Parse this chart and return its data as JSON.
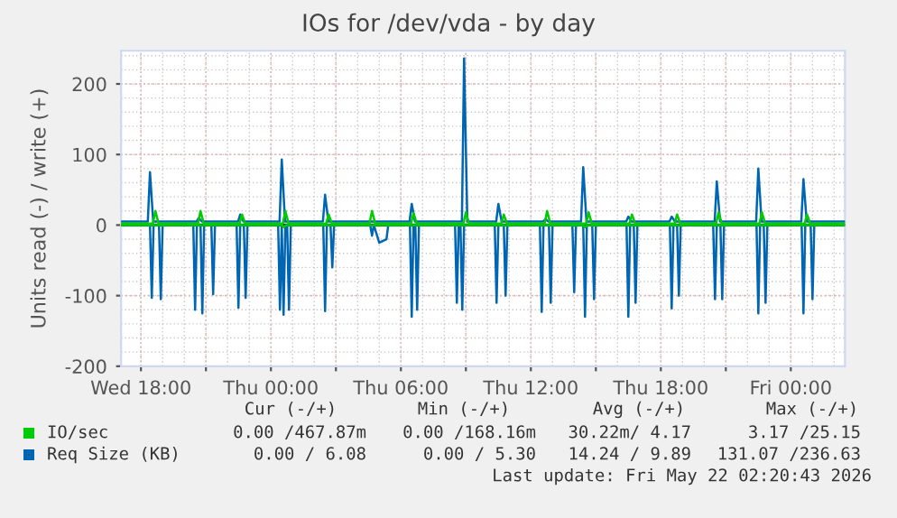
{
  "chart_data": {
    "type": "line",
    "title": "IOs for /dev/vda - by day",
    "ylabel": "Units read (-) / write (+)",
    "xlim": [
      "2026-05-20T17:05",
      "2026-05-22T02:30"
    ],
    "ylim": [
      -200,
      247
    ],
    "xticks": [
      {
        "value": "2026-05-20T18:00",
        "label": "Wed 18:00"
      },
      {
        "value": "2026-05-20T21:00",
        "label": null
      },
      {
        "value": "2026-05-21T00:00",
        "label": "Thu 00:00"
      },
      {
        "value": "2026-05-21T03:00",
        "label": null
      },
      {
        "value": "2026-05-21T06:00",
        "label": "Thu 06:00"
      },
      {
        "value": "2026-05-21T09:00",
        "label": null
      },
      {
        "value": "2026-05-21T12:00",
        "label": "Thu 12:00"
      },
      {
        "value": "2026-05-21T15:00",
        "label": null
      },
      {
        "value": "2026-05-21T18:00",
        "label": "Thu 18:00"
      },
      {
        "value": "2026-05-21T21:00",
        "label": null
      },
      {
        "value": "2026-05-22T00:00",
        "label": "Fri 00:00"
      }
    ],
    "yticks": [
      -200,
      -100,
      0,
      100,
      200
    ],
    "grid": true,
    "legend": "bottom left",
    "ref_lines": [
      {
        "axis": "y",
        "value": 0,
        "color": "#000000"
      }
    ],
    "series": [
      {
        "color": "#00cc00",
        "x": [
          "2026-05-20T17:05",
          "2026-05-21T00:30",
          "2026-05-21T00:35",
          "2026-05-21T00:42",
          "2026-05-21T14:24",
          "2026-05-21T14:30",
          "2026-05-21T14:36",
          "2026-05-22T02:30"
        ],
        "values": [
          0,
          0,
          -3,
          0,
          0,
          -3,
          0,
          0
        ]
      },
      {
        "name": "IO/sec",
        "color": "#00cc00",
        "x": [
          "2026-05-20T17:05",
          "2026-05-20T18:33",
          "2026-05-20T18:40",
          "2026-05-20T18:49",
          "2026-05-20T20:38",
          "2026-05-20T20:45",
          "2026-05-20T20:54",
          "2026-05-20T22:33",
          "2026-05-20T22:40",
          "2026-05-20T22:49",
          "2026-05-21T00:33",
          "2026-05-21T00:40",
          "2026-05-21T00:49",
          "2026-05-21T02:33",
          "2026-05-21T02:40",
          "2026-05-21T02:49",
          "2026-05-21T04:33",
          "2026-05-21T04:40",
          "2026-05-21T04:49",
          "2026-05-21T06:28",
          "2026-05-21T06:35",
          "2026-05-21T06:44",
          "2026-05-21T08:53",
          "2026-05-21T09:00",
          "2026-05-21T09:09",
          "2026-05-21T10:38",
          "2026-05-21T10:45",
          "2026-05-21T10:54",
          "2026-05-21T12:38",
          "2026-05-21T12:45",
          "2026-05-21T12:54",
          "2026-05-21T14:33",
          "2026-05-21T14:40",
          "2026-05-21T14:49",
          "2026-05-21T16:33",
          "2026-05-21T16:40",
          "2026-05-21T16:49",
          "2026-05-21T18:38",
          "2026-05-21T18:45",
          "2026-05-21T18:54",
          "2026-05-21T20:33",
          "2026-05-21T20:40",
          "2026-05-21T20:49",
          "2026-05-21T22:33",
          "2026-05-21T22:40",
          "2026-05-21T22:49",
          "2026-05-22T00:38",
          "2026-05-22T00:45",
          "2026-05-22T00:54",
          "2026-05-22T02:30"
        ],
        "values": [
          2,
          2,
          20,
          2,
          2,
          20,
          2,
          2,
          15,
          2,
          2,
          20,
          2,
          2,
          15,
          2,
          2,
          20,
          2,
          2,
          17,
          2,
          2,
          18,
          2,
          2,
          15,
          2,
          2,
          20,
          2,
          2,
          18,
          2,
          2,
          15,
          2,
          2,
          15,
          2,
          2,
          18,
          2,
          2,
          18,
          2,
          2,
          15,
          2,
          2
        ]
      },
      {
        "color": "#0066b3",
        "x": [
          "2026-05-20T17:05",
          "2026-05-20T18:25",
          "2026-05-20T18:30",
          "2026-05-20T18:35",
          "2026-05-20T18:50",
          "2026-05-20T18:55",
          "2026-05-20T19:00",
          "2026-05-20T20:25",
          "2026-05-20T20:30",
          "2026-05-20T20:35",
          "2026-05-20T20:45",
          "2026-05-20T20:50",
          "2026-05-20T20:55",
          "2026-05-20T21:15",
          "2026-05-20T21:20",
          "2026-05-20T21:25",
          "2026-05-20T22:25",
          "2026-05-20T22:30",
          "2026-05-20T22:35",
          "2026-05-20T22:45",
          "2026-05-20T22:50",
          "2026-05-20T22:55",
          "2026-05-21T00:20",
          "2026-05-21T00:25",
          "2026-05-21T00:30",
          "2026-05-21T00:35",
          "2026-05-21T00:40",
          "2026-05-21T00:45",
          "2026-05-21T00:50",
          "2026-05-21T00:55",
          "2026-05-21T02:25",
          "2026-05-21T02:30",
          "2026-05-21T02:35",
          "2026-05-21T02:45",
          "2026-05-21T02:50",
          "2026-05-21T02:55",
          "2026-05-21T04:35",
          "2026-05-21T04:40",
          "2026-05-21T04:45",
          "2026-05-21T05:00",
          "2026-05-21T05:20",
          "2026-05-21T05:25",
          "2026-05-21T06:25",
          "2026-05-21T06:30",
          "2026-05-21T06:35",
          "2026-05-21T06:40",
          "2026-05-21T06:45",
          "2026-05-21T06:50",
          "2026-05-21T08:30",
          "2026-05-21T08:35",
          "2026-05-21T08:40",
          "2026-05-21T08:45",
          "2026-05-21T08:50",
          "2026-05-21T08:55",
          "2026-05-21T10:20",
          "2026-05-21T10:25",
          "2026-05-21T10:30",
          "2026-05-21T10:45",
          "2026-05-21T10:50",
          "2026-05-21T10:55",
          "2026-05-21T12:25",
          "2026-05-21T12:30",
          "2026-05-21T12:35",
          "2026-05-21T12:50",
          "2026-05-21T12:55",
          "2026-05-21T13:00",
          "2026-05-21T13:55",
          "2026-05-21T14:00",
          "2026-05-21T14:05",
          "2026-05-21T14:25",
          "2026-05-21T14:30",
          "2026-05-21T14:35",
          "2026-05-21T14:50",
          "2026-05-21T14:55",
          "2026-05-21T15:00",
          "2026-05-21T16:25",
          "2026-05-21T16:30",
          "2026-05-21T16:35",
          "2026-05-21T16:45",
          "2026-05-21T16:50",
          "2026-05-21T16:55",
          "2026-05-21T18:25",
          "2026-05-21T18:30",
          "2026-05-21T18:35",
          "2026-05-21T18:45",
          "2026-05-21T18:50",
          "2026-05-21T18:55",
          "2026-05-21T20:25",
          "2026-05-21T20:30",
          "2026-05-21T20:35",
          "2026-05-21T20:45",
          "2026-05-21T20:50",
          "2026-05-21T20:55",
          "2026-05-21T22:25",
          "2026-05-21T22:30",
          "2026-05-21T22:35",
          "2026-05-21T22:45",
          "2026-05-21T22:50",
          "2026-05-21T22:55",
          "2026-05-22T00:30",
          "2026-05-22T00:35",
          "2026-05-22T00:40",
          "2026-05-22T00:55",
          "2026-05-22T01:00",
          "2026-05-22T01:05",
          "2026-05-22T02:30"
        ],
        "values": [
          0,
          0,
          -103,
          0,
          0,
          -105,
          0,
          0,
          -120,
          0,
          0,
          -125,
          0,
          0,
          -98,
          0,
          0,
          -117,
          0,
          0,
          -103,
          0,
          0,
          -120,
          0,
          -127,
          0,
          0,
          -120,
          0,
          0,
          -122,
          0,
          0,
          -60,
          0,
          0,
          -15,
          0,
          -25,
          -20,
          0,
          0,
          -130,
          0,
          0,
          -120,
          0,
          0,
          -110,
          0,
          0,
          -120,
          0,
          0,
          -110,
          0,
          0,
          -100,
          0,
          0,
          -123,
          0,
          0,
          -110,
          0,
          0,
          -95,
          0,
          0,
          -130,
          0,
          0,
          -105,
          0,
          0,
          -130,
          0,
          0,
          -110,
          0,
          0,
          -118,
          0,
          0,
          -100,
          0,
          0,
          -105,
          0,
          0,
          -105,
          0,
          0,
          -125,
          0,
          0,
          -110,
          0,
          0,
          -125,
          0,
          0,
          -105,
          0,
          0
        ]
      },
      {
        "name": "Req Size (KB)",
        "color": "#0066b3",
        "x": [
          "2026-05-20T17:05",
          "2026-05-20T18:19",
          "2026-05-20T18:25",
          "2026-05-20T18:34",
          "2026-05-20T20:34",
          "2026-05-20T20:40",
          "2026-05-20T20:49",
          "2026-05-20T22:29",
          "2026-05-20T22:35",
          "2026-05-20T22:44",
          "2026-05-21T00:24",
          "2026-05-21T00:30",
          "2026-05-21T00:39",
          "2026-05-21T02:24",
          "2026-05-21T02:30",
          "2026-05-21T02:39",
          "2026-05-21T06:24",
          "2026-05-21T06:30",
          "2026-05-21T06:39",
          "2026-05-21T08:49",
          "2026-05-21T08:55",
          "2026-05-21T09:04",
          "2026-05-21T10:24",
          "2026-05-21T10:30",
          "2026-05-21T10:39",
          "2026-05-21T12:34",
          "2026-05-21T12:40",
          "2026-05-21T12:49",
          "2026-05-21T14:19",
          "2026-05-21T14:25",
          "2026-05-21T14:34",
          "2026-05-21T16:24",
          "2026-05-21T16:30",
          "2026-05-21T16:39",
          "2026-05-21T18:24",
          "2026-05-21T18:30",
          "2026-05-21T18:39",
          "2026-05-21T20:29",
          "2026-05-21T20:35",
          "2026-05-21T20:44",
          "2026-05-21T22:24",
          "2026-05-21T22:30",
          "2026-05-21T22:39",
          "2026-05-22T00:29",
          "2026-05-22T00:35",
          "2026-05-22T00:44",
          "2026-05-22T02:30"
        ],
        "values": [
          5,
          5,
          75,
          5,
          5,
          10,
          5,
          5,
          15,
          5,
          5,
          93,
          5,
          5,
          43,
          5,
          5,
          30,
          5,
          5,
          236,
          5,
          5,
          30,
          5,
          5,
          8,
          5,
          5,
          82,
          5,
          5,
          12,
          5,
          5,
          12,
          5,
          5,
          62,
          5,
          5,
          80,
          5,
          5,
          65,
          5,
          5
        ]
      }
    ],
    "annotations": [
      "Cur (-/+)",
      "Min (-/+)",
      "Avg (-/+)",
      "Max (-/+)",
      "0.00 /467.87m",
      "0.00 /168.16m",
      "30.22m/ 4.17",
      "3.17 /25.15",
      "0.00 / 6.08",
      "0.00 / 5.30",
      "14.24 / 9.89",
      "131.07 /236.63",
      "Last update: Fri May 22 02:20:43 2026"
    ]
  }
}
